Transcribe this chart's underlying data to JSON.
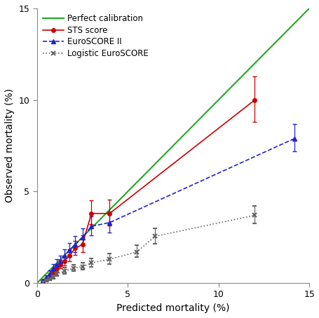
{
  "title": "",
  "xlabel": "Predicted mortality (%)",
  "ylabel": "Observed mortality (%)",
  "xlim": [
    0,
    15
  ],
  "ylim": [
    0,
    15
  ],
  "xticks": [
    0,
    5,
    10,
    15
  ],
  "yticks": [
    0,
    5,
    10,
    15
  ],
  "perfect_calibration": {
    "x": [
      0,
      15
    ],
    "y": [
      0,
      15
    ],
    "color": "#22aa22",
    "lw": 1.5
  },
  "sts_x": [
    0.3,
    0.5,
    0.7,
    0.9,
    1.1,
    1.3,
    1.5,
    1.8,
    2.1,
    2.5,
    3.0,
    4.0,
    12.0
  ],
  "sts_y": [
    0.1,
    0.2,
    0.4,
    0.6,
    0.8,
    1.0,
    1.2,
    1.5,
    1.9,
    2.1,
    3.8,
    3.8,
    10.0
  ],
  "sts_yerr_low": [
    0.05,
    0.08,
    0.1,
    0.15,
    0.2,
    0.2,
    0.25,
    0.3,
    0.35,
    0.4,
    0.6,
    0.65,
    1.2
  ],
  "sts_yerr_high": [
    0.07,
    0.1,
    0.15,
    0.2,
    0.25,
    0.25,
    0.3,
    0.35,
    0.4,
    0.5,
    0.7,
    0.75,
    1.3
  ],
  "sts_color": "#cc0000",
  "euro2_x": [
    0.3,
    0.5,
    0.7,
    0.9,
    1.1,
    1.3,
    1.5,
    1.8,
    2.1,
    2.5,
    3.0,
    4.0,
    14.2
  ],
  "euro2_y": [
    0.1,
    0.3,
    0.5,
    0.8,
    1.0,
    1.2,
    1.5,
    1.8,
    2.1,
    2.5,
    3.1,
    3.3,
    7.9
  ],
  "euro2_yerr_low": [
    0.05,
    0.1,
    0.15,
    0.2,
    0.25,
    0.25,
    0.3,
    0.35,
    0.4,
    0.45,
    0.5,
    0.55,
    0.7
  ],
  "euro2_yerr_high": [
    0.07,
    0.12,
    0.18,
    0.25,
    0.3,
    0.3,
    0.35,
    0.4,
    0.45,
    0.5,
    0.55,
    0.6,
    0.8
  ],
  "euro2_color": "#2222cc",
  "logistic_x": [
    0.3,
    0.5,
    0.7,
    0.9,
    1.1,
    1.5,
    2.0,
    2.5,
    3.0,
    4.0,
    5.5,
    6.5,
    12.0
  ],
  "logistic_y": [
    0.05,
    0.15,
    0.25,
    0.35,
    0.5,
    0.65,
    0.8,
    0.9,
    1.1,
    1.3,
    1.7,
    2.55,
    3.7
  ],
  "logistic_yerr_low": [
    0.03,
    0.05,
    0.08,
    0.1,
    0.12,
    0.15,
    0.15,
    0.18,
    0.2,
    0.25,
    0.3,
    0.4,
    0.45
  ],
  "logistic_yerr_high": [
    0.04,
    0.07,
    0.1,
    0.12,
    0.15,
    0.18,
    0.18,
    0.22,
    0.25,
    0.3,
    0.35,
    0.45,
    0.5
  ],
  "logistic_color": "#666666",
  "legend_labels": [
    "Perfect calibration",
    "STS score",
    "EuroSCORE II",
    "Logistic EuroSCORE"
  ],
  "legend_colors": [
    "#22aa22",
    "#cc0000",
    "#2222cc",
    "#666666"
  ],
  "background_color": "#ffffff"
}
